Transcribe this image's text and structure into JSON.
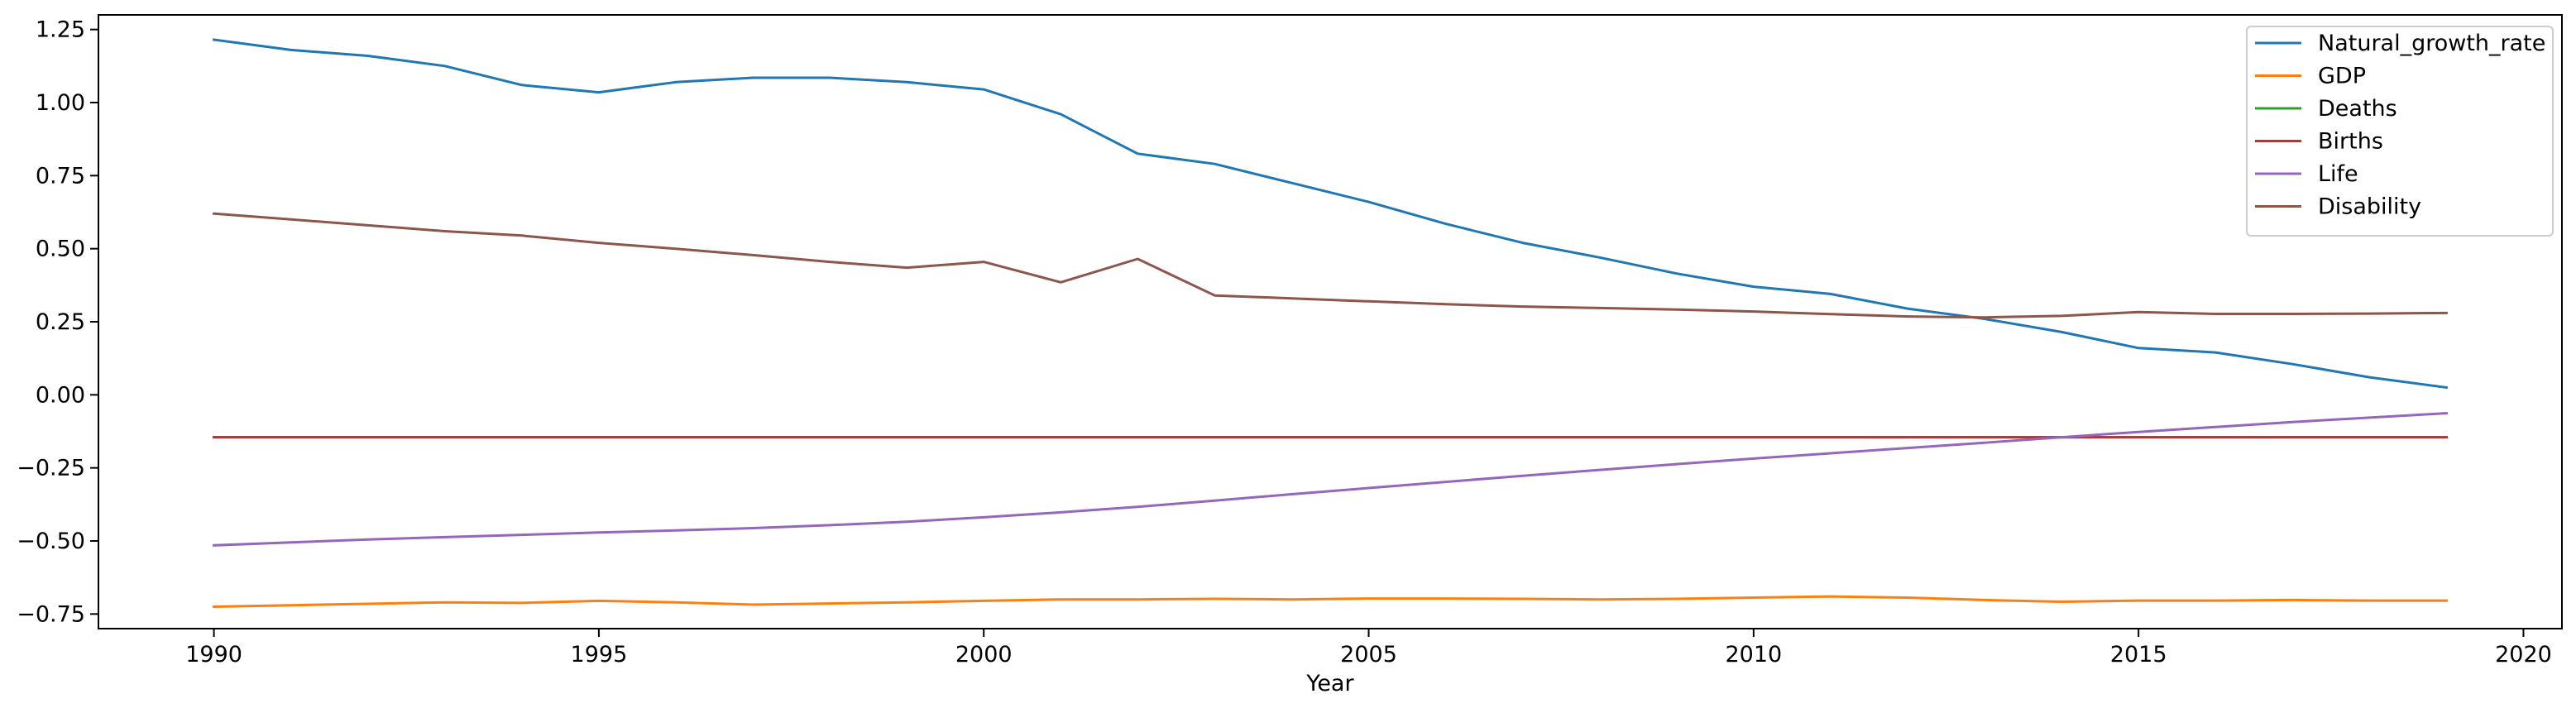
{
  "chart_data": {
    "type": "line",
    "title": "",
    "xlabel": "Year",
    "ylabel": "",
    "xlim": [
      1988.5,
      2020.5
    ],
    "ylim": [
      -0.8,
      1.3
    ],
    "xticks": [
      1990,
      1995,
      2000,
      2005,
      2010,
      2015,
      2020
    ],
    "yticks": [
      -0.75,
      -0.5,
      -0.25,
      0.0,
      0.25,
      0.5,
      0.75,
      1.0,
      1.25
    ],
    "xtick_labels": [
      "1990",
      "1995",
      "2000",
      "2005",
      "2010",
      "2015",
      "2020"
    ],
    "ytick_labels": [
      "−0.75",
      "−0.50",
      "−0.25",
      "0.00",
      "0.25",
      "0.50",
      "0.75",
      "1.00",
      "1.25"
    ],
    "grid": false,
    "legend_position": "top-right",
    "x": [
      1990,
      1991,
      1992,
      1993,
      1994,
      1995,
      1996,
      1997,
      1998,
      1999,
      2000,
      2001,
      2002,
      2003,
      2004,
      2005,
      2006,
      2007,
      2008,
      2009,
      2010,
      2011,
      2012,
      2013,
      2014,
      2015,
      2016,
      2017,
      2018,
      2019
    ],
    "series": [
      {
        "name": "Natural_growth_rate",
        "color": "#1f77b4",
        "values": [
          1.215,
          1.18,
          1.16,
          1.125,
          1.06,
          1.035,
          1.07,
          1.085,
          1.085,
          1.07,
          1.045,
          0.96,
          0.825,
          0.79,
          0.725,
          0.66,
          0.585,
          0.52,
          0.47,
          0.415,
          0.37,
          0.345,
          0.295,
          0.26,
          0.215,
          0.16,
          0.145,
          0.105,
          0.06,
          0.025
        ]
      },
      {
        "name": "GDP",
        "color": "#ff7f0e",
        "values": [
          -0.725,
          -0.72,
          -0.715,
          -0.71,
          -0.712,
          -0.705,
          -0.71,
          -0.718,
          -0.714,
          -0.71,
          -0.705,
          -0.7,
          -0.7,
          -0.698,
          -0.7,
          -0.697,
          -0.697,
          -0.698,
          -0.7,
          -0.698,
          -0.694,
          -0.69,
          -0.694,
          -0.702,
          -0.708,
          -0.704,
          -0.704,
          -0.702,
          -0.704,
          -0.704
        ]
      },
      {
        "name": "Deaths",
        "color": "#2ca02c",
        "values": [
          -0.145,
          -0.145,
          -0.145,
          -0.145,
          -0.145,
          -0.145,
          -0.145,
          -0.145,
          -0.145,
          -0.145,
          -0.145,
          -0.145,
          -0.145,
          -0.145,
          -0.145,
          -0.145,
          -0.145,
          -0.145,
          -0.145,
          -0.145,
          -0.145,
          -0.145,
          -0.145,
          -0.145,
          -0.145,
          -0.145,
          -0.145,
          -0.145,
          -0.145,
          -0.145
        ]
      },
      {
        "name": "Births",
        "color": "#d62728",
        "values": [
          -0.145,
          -0.145,
          -0.145,
          -0.145,
          -0.145,
          -0.145,
          -0.145,
          -0.145,
          -0.145,
          -0.145,
          -0.145,
          -0.145,
          -0.145,
          -0.145,
          -0.145,
          -0.145,
          -0.145,
          -0.145,
          -0.145,
          -0.145,
          -0.145,
          -0.145,
          -0.145,
          -0.145,
          -0.145,
          -0.145,
          -0.145,
          -0.145,
          -0.145,
          -0.145
        ]
      },
      {
        "name": "Life",
        "color": "#9467bd",
        "values": [
          -0.515,
          -0.505,
          -0.495,
          -0.487,
          -0.479,
          -0.471,
          -0.464,
          -0.456,
          -0.446,
          -0.434,
          -0.419,
          -0.402,
          -0.383,
          -0.362,
          -0.34,
          -0.319,
          -0.298,
          -0.277,
          -0.257,
          -0.237,
          -0.218,
          -0.2,
          -0.182,
          -0.164,
          -0.145,
          -0.127,
          -0.11,
          -0.093,
          -0.078,
          -0.063
        ]
      },
      {
        "name": "Disability",
        "color": "#8c564b",
        "values": [
          0.62,
          0.6,
          0.58,
          0.56,
          0.545,
          0.52,
          0.5,
          0.478,
          0.455,
          0.435,
          0.455,
          0.385,
          0.465,
          0.34,
          0.33,
          0.32,
          0.31,
          0.302,
          0.297,
          0.292,
          0.285,
          0.276,
          0.268,
          0.265,
          0.27,
          0.283,
          0.277,
          0.277,
          0.278,
          0.28
        ]
      }
    ]
  }
}
